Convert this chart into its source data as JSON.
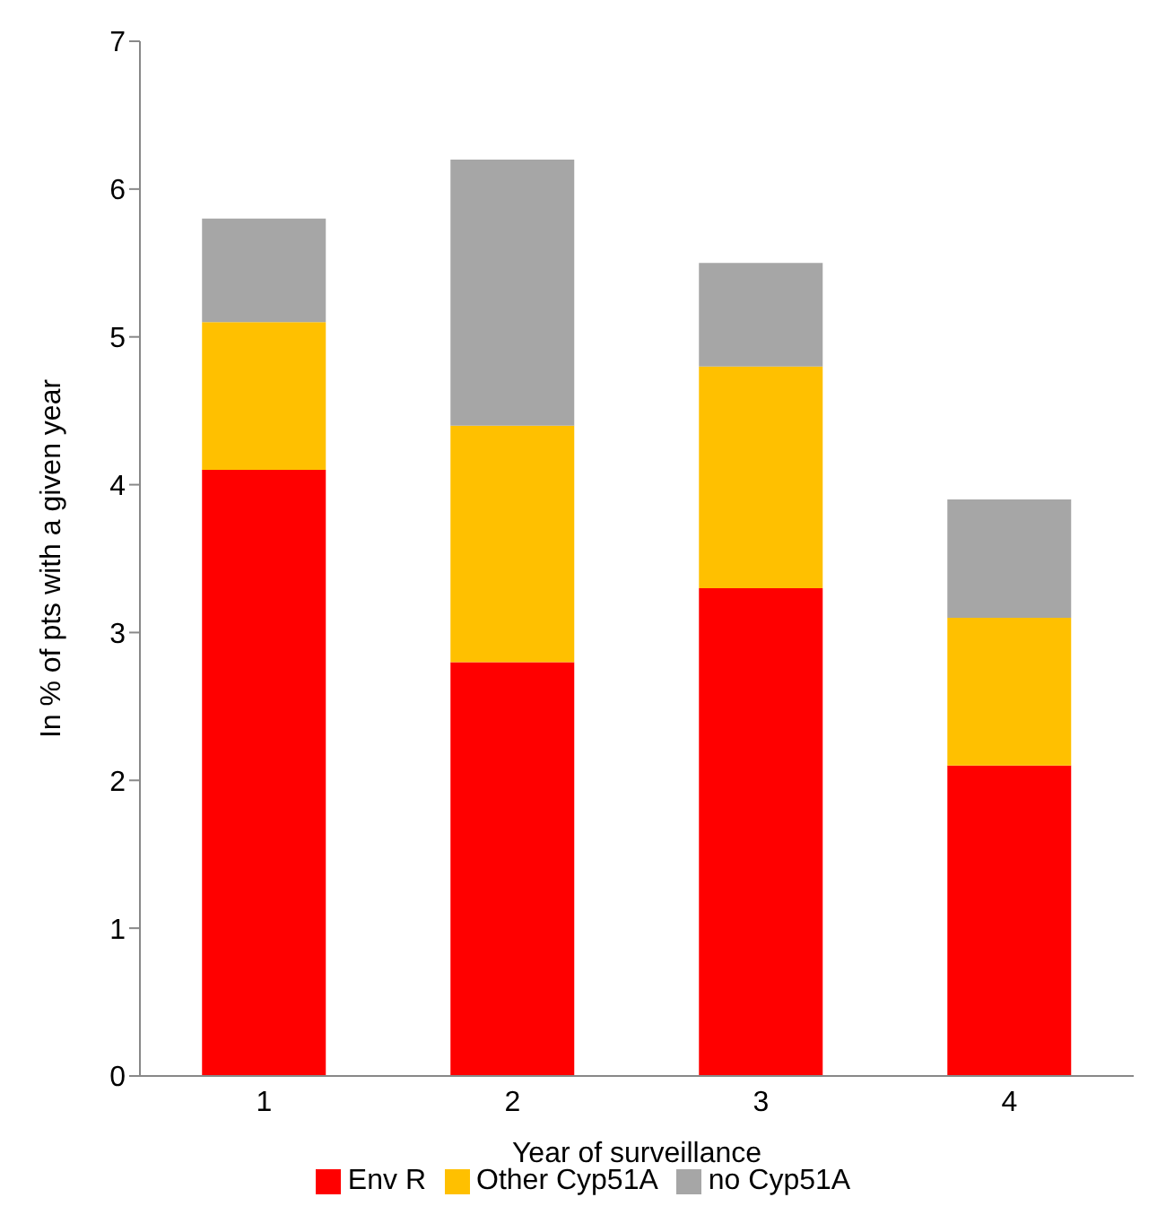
{
  "chart_data": {
    "type": "bar",
    "stacked": true,
    "xlabel": "Year of surveillance",
    "ylabel": "In % of pts with a given year",
    "categories": [
      "1",
      "2",
      "3",
      "4"
    ],
    "series": [
      {
        "name": "Env R",
        "color": "#ff0000",
        "values": [
          4.1,
          2.8,
          3.3,
          2.1
        ]
      },
      {
        "name": "Other Cyp51A",
        "color": "#ffc000",
        "values": [
          1.0,
          1.6,
          1.5,
          1.0
        ]
      },
      {
        "name": "no Cyp51A",
        "color": "#a6a6a6",
        "values": [
          0.7,
          1.8,
          0.7,
          0.8
        ]
      }
    ],
    "ylim": [
      0,
      7
    ],
    "yticks": [
      0,
      1,
      2,
      3,
      4,
      5,
      6,
      7
    ],
    "grid": false,
    "legend": "bottom"
  }
}
